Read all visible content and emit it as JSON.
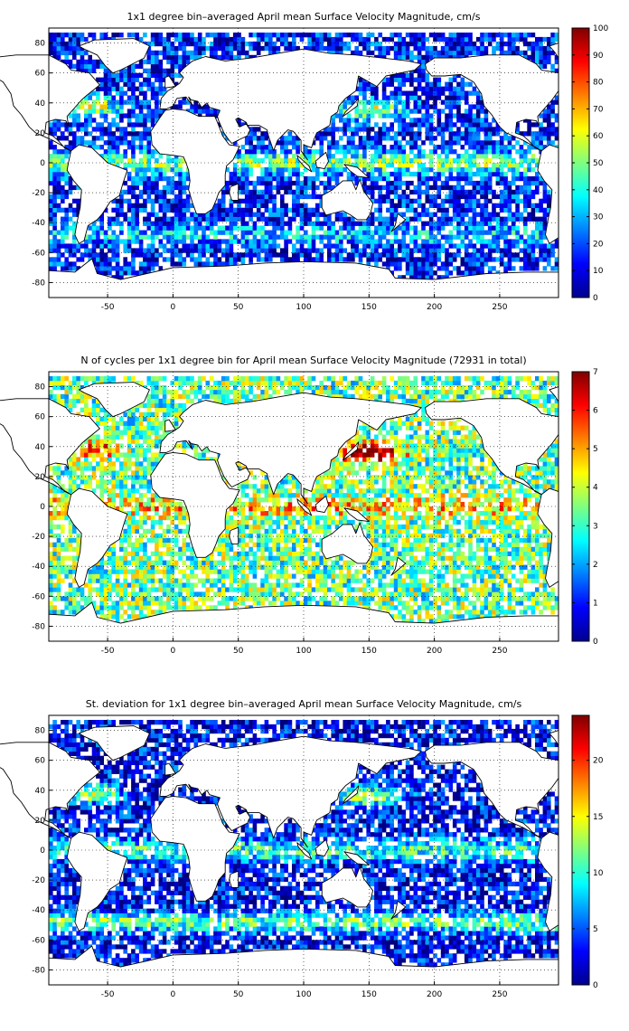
{
  "panels": [
    {
      "title": "1x1 degree bin–averaged April mean Surface Velocity Magnitude, cm/s",
      "colorbar_ticks": [
        "0",
        "10",
        "20",
        "30",
        "40",
        "50",
        "60",
        "70",
        "80",
        "90",
        "100"
      ],
      "cmin": 0,
      "cmax": 100
    },
    {
      "title": "N of cycles per 1x1 degree bin for April mean Surface Velocity Magnitude (72931 in total)",
      "colorbar_ticks": [
        "0",
        "1",
        "2",
        "3",
        "4",
        "5",
        "6",
        "7"
      ],
      "cmin": 0,
      "cmax": 7
    },
    {
      "title": "St. deviation for 1x1 degree bin–averaged April mean Surface Velocity Magnitude, cm/s",
      "colorbar_ticks": [
        "0",
        "5",
        "10",
        "15",
        "20"
      ],
      "cmin": 0,
      "cmax": 24
    }
  ],
  "x_ticks": [
    "-50",
    "0",
    "50",
    "100",
    "150",
    "200",
    "250"
  ],
  "y_ticks": [
    "80",
    "60",
    "40",
    "20",
    "0",
    "-20",
    "-40",
    "-60",
    "-80"
  ],
  "chart_data": [
    {
      "type": "heatmap",
      "title": "1x1 degree bin–averaged April mean Surface Velocity Magnitude, cm/s",
      "xlabel": "",
      "ylabel": "",
      "xlim": [
        -95,
        295
      ],
      "ylim": [
        -90,
        90
      ],
      "colorbar": {
        "min": 0,
        "max": 100,
        "ticks": [
          0,
          10,
          20,
          30,
          40,
          50,
          60,
          70,
          80,
          90,
          100
        ]
      },
      "grid": true
    },
    {
      "type": "heatmap",
      "title": "N of cycles per 1x1 degree bin for April mean Surface Velocity Magnitude (72931 in total)",
      "xlabel": "",
      "ylabel": "",
      "xlim": [
        -95,
        295
      ],
      "ylim": [
        -90,
        90
      ],
      "colorbar": {
        "min": 0,
        "max": 7,
        "ticks": [
          0,
          1,
          2,
          3,
          4,
          5,
          6,
          7
        ]
      },
      "grid": true
    },
    {
      "type": "heatmap",
      "title": "St. deviation for 1x1 degree bin–averaged April mean Surface Velocity Magnitude, cm/s",
      "xlabel": "",
      "ylabel": "",
      "xlim": [
        -95,
        295
      ],
      "ylim": [
        -90,
        90
      ],
      "colorbar": {
        "min": 0,
        "max": 24,
        "ticks": [
          0,
          5,
          10,
          15,
          20
        ]
      },
      "grid": true
    }
  ]
}
